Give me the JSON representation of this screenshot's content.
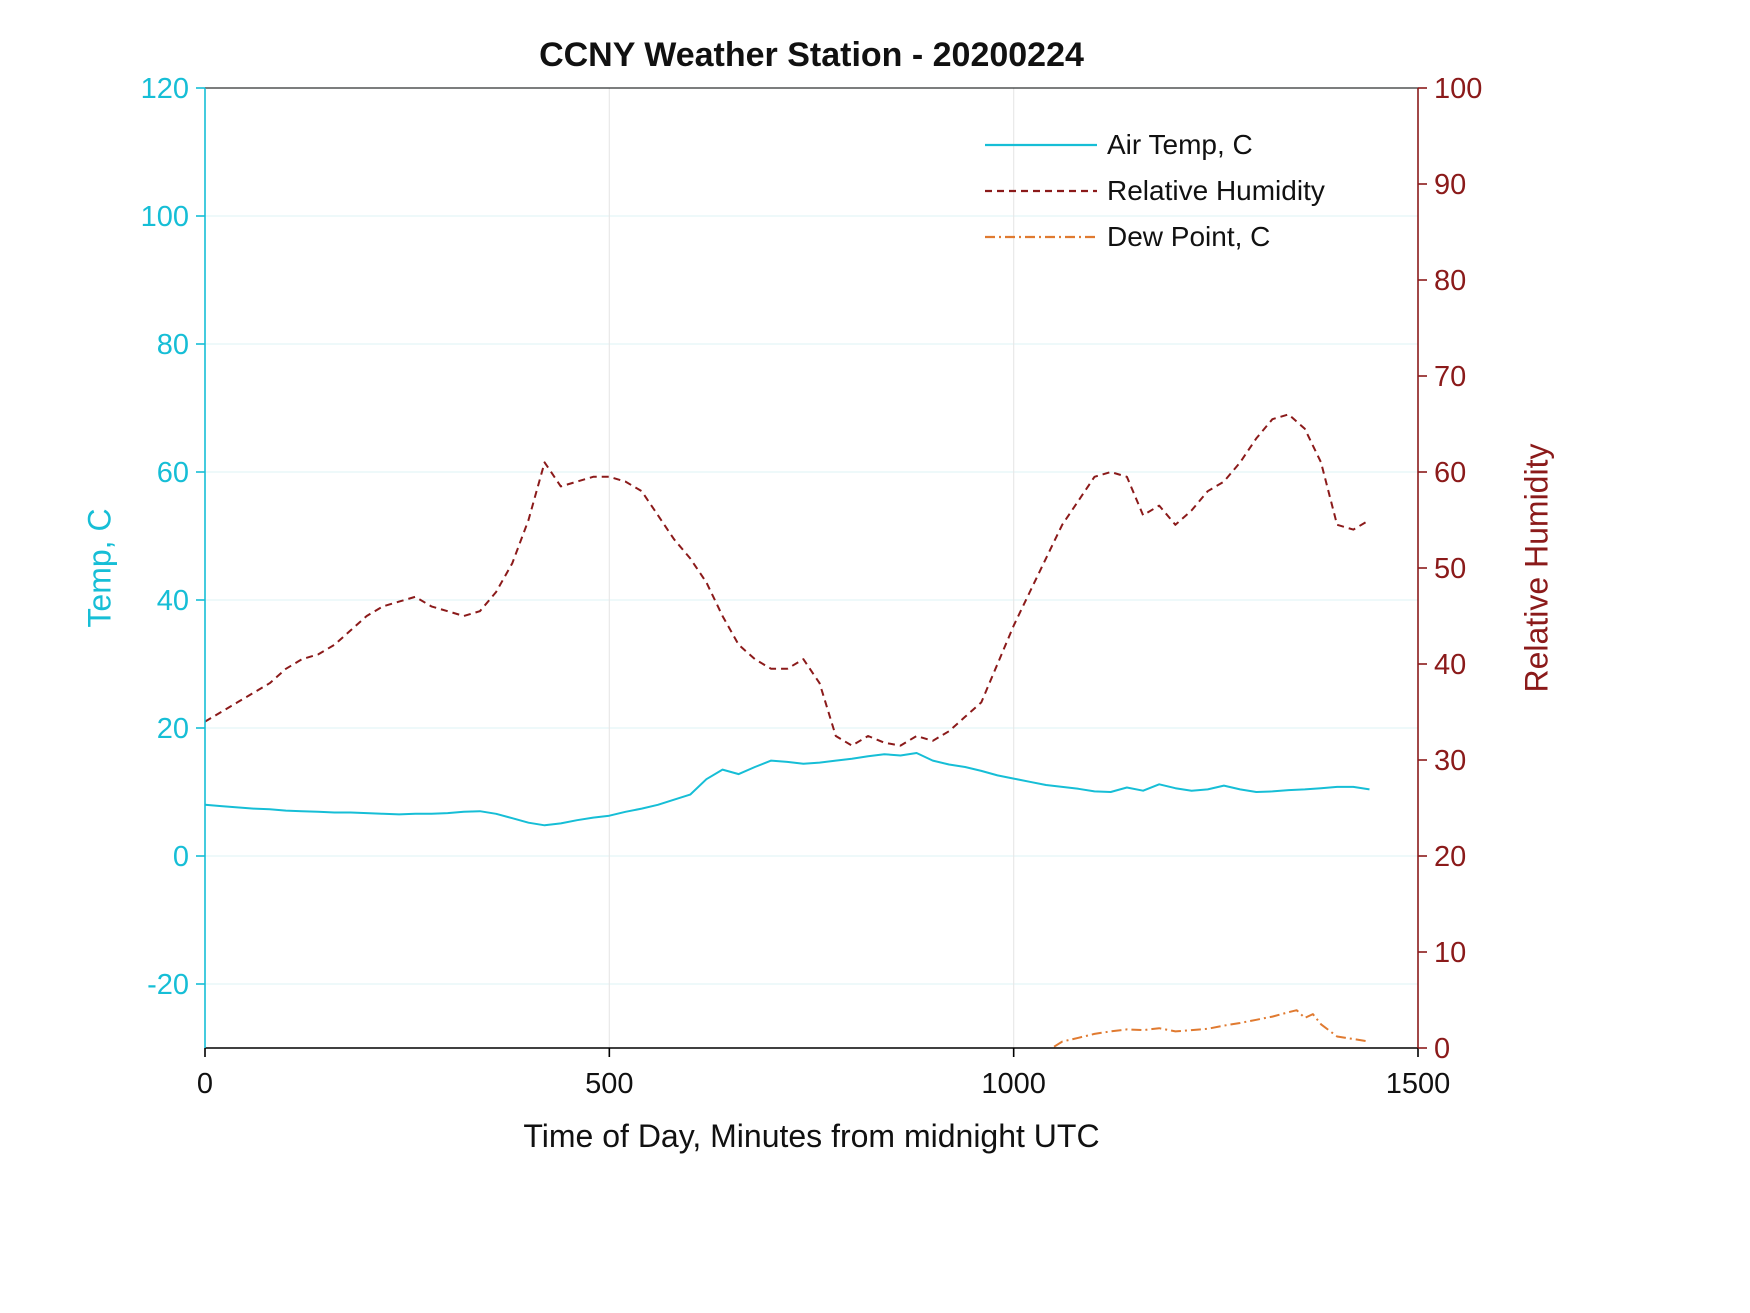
{
  "figure": {
    "title": "CCNY Weather Station - 20200224",
    "xlabel": "Time of Day, Minutes from midnight UTC",
    "ylabel_left": "Temp, C",
    "ylabel_right": "Relative Humidity"
  },
  "legend": {
    "entries": [
      {
        "label": "Air Temp, C"
      },
      {
        "label": "Relative Humidity"
      },
      {
        "label": "Dew Point, C"
      }
    ]
  },
  "colors": {
    "temp_axis": "#16BED6",
    "humidity_axis": "#8B1A1A",
    "dew_point": "#E07A30",
    "x_axis": "#000000",
    "grid_horizontal": "#E3F5F8",
    "grid_vertical": "#E8E8E8"
  },
  "chart_data": {
    "type": "line",
    "title": "CCNY Weather Station - 20200224",
    "xlabel": "Time of Day, Minutes from midnight UTC",
    "ylabel_left": "Temp, C",
    "ylabel_right": "Relative Humidity",
    "x_range": [
      0,
      1500
    ],
    "x_ticks": [
      0,
      500,
      1000,
      1500
    ],
    "yleft_range": [
      -30,
      120
    ],
    "yleft_ticks": [
      -20,
      0,
      20,
      40,
      60,
      80,
      100,
      120
    ],
    "yright_range": [
      0,
      100
    ],
    "yright_ticks": [
      0,
      10,
      20,
      30,
      40,
      50,
      60,
      70,
      80,
      90,
      100
    ],
    "grid": true,
    "legend_position": "top-right",
    "series": [
      {
        "name": "Air Temp, C",
        "axis": "left",
        "units": "C",
        "color": "#16BED6",
        "style": "solid",
        "x": [
          0,
          20,
          40,
          60,
          80,
          100,
          120,
          140,
          160,
          180,
          200,
          220,
          240,
          260,
          280,
          300,
          320,
          340,
          360,
          380,
          400,
          420,
          440,
          460,
          480,
          500,
          520,
          540,
          560,
          580,
          600,
          620,
          640,
          660,
          680,
          700,
          720,
          740,
          760,
          780,
          800,
          820,
          840,
          860,
          880,
          900,
          920,
          940,
          960,
          980,
          1000,
          1020,
          1040,
          1060,
          1080,
          1100,
          1120,
          1140,
          1160,
          1180,
          1200,
          1220,
          1240,
          1260,
          1280,
          1300,
          1320,
          1340,
          1360,
          1380,
          1400,
          1420,
          1440
        ],
        "y": [
          8.0,
          7.8,
          7.6,
          7.4,
          7.3,
          7.1,
          7.0,
          6.9,
          6.8,
          6.8,
          6.7,
          6.6,
          6.5,
          6.6,
          6.6,
          6.7,
          6.9,
          7.0,
          6.6,
          5.9,
          5.2,
          4.8,
          5.1,
          5.6,
          6.0,
          6.3,
          6.9,
          7.4,
          8.0,
          8.8,
          9.6,
          12.0,
          13.5,
          12.8,
          13.9,
          14.9,
          14.7,
          14.4,
          14.6,
          14.9,
          15.2,
          15.6,
          15.9,
          15.7,
          16.1,
          14.9,
          14.3,
          13.9,
          13.3,
          12.6,
          12.1,
          11.6,
          11.1,
          10.8,
          10.5,
          10.1,
          10.0,
          10.7,
          10.2,
          11.2,
          10.6,
          10.2,
          10.4,
          11.0,
          10.4,
          10.0,
          10.1,
          10.3,
          10.4,
          10.6,
          10.8,
          10.8,
          10.4
        ]
      },
      {
        "name": "Relative Humidity",
        "axis": "right",
        "units": "%",
        "color": "#8B1A1A",
        "style": "dashed",
        "x": [
          0,
          20,
          40,
          60,
          80,
          100,
          120,
          140,
          160,
          180,
          200,
          220,
          240,
          260,
          280,
          300,
          320,
          340,
          360,
          380,
          400,
          420,
          440,
          460,
          480,
          500,
          520,
          540,
          560,
          580,
          600,
          620,
          640,
          660,
          680,
          700,
          720,
          740,
          760,
          780,
          800,
          820,
          840,
          860,
          880,
          900,
          920,
          940,
          960,
          980,
          1000,
          1020,
          1040,
          1060,
          1080,
          1100,
          1120,
          1140,
          1160,
          1180,
          1200,
          1220,
          1240,
          1260,
          1280,
          1300,
          1320,
          1340,
          1360,
          1380,
          1400,
          1420,
          1440
        ],
        "y": [
          34,
          35,
          36,
          37,
          38,
          39.5,
          40.5,
          41,
          42,
          43.5,
          45,
          46,
          46.5,
          47,
          46,
          45.5,
          45,
          45.5,
          47.5,
          50.5,
          55,
          61,
          58.5,
          59,
          59.5,
          59.5,
          59,
          58,
          55.5,
          53,
          51,
          48.5,
          45,
          42,
          40.5,
          39.5,
          39.5,
          40.5,
          38,
          32.5,
          31.5,
          32.5,
          31.8,
          31.5,
          32.5,
          32,
          33,
          34.5,
          36,
          40,
          44,
          47.5,
          51,
          54.5,
          57,
          59.5,
          60,
          59.5,
          55.5,
          56.5,
          54.5,
          56,
          58,
          59,
          61,
          63.5,
          65.5,
          66,
          64.5,
          61,
          54.5,
          54,
          55
        ]
      },
      {
        "name": "Dew Point, C",
        "axis": "left",
        "units": "C",
        "color": "#E07A30",
        "style": "dashdot",
        "x": [
          1050,
          1060,
          1080,
          1100,
          1120,
          1140,
          1160,
          1180,
          1200,
          1220,
          1240,
          1260,
          1280,
          1300,
          1320,
          1340,
          1350,
          1360,
          1370,
          1380,
          1400,
          1420,
          1440
        ],
        "y": [
          -29.8,
          -29.0,
          -28.4,
          -27.8,
          -27.4,
          -27.1,
          -27.2,
          -26.9,
          -27.4,
          -27.2,
          -27.0,
          -26.5,
          -26.1,
          -25.6,
          -25.1,
          -24.4,
          -24.1,
          -25.3,
          -24.7,
          -26.3,
          -28.2,
          -28.6,
          -29.0
        ]
      }
    ]
  }
}
